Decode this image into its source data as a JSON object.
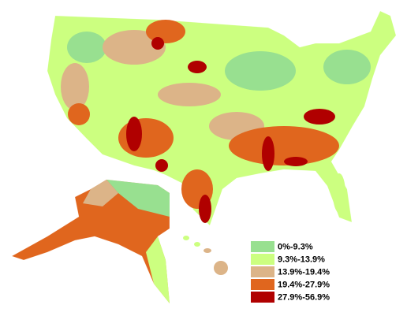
{
  "legend": {
    "items": [
      {
        "label": "0%-9.3%",
        "color": "#98e090"
      },
      {
        "label": "9.3%-13.9%",
        "color": "#ccff80"
      },
      {
        "label": "13.9%-19.4%",
        "color": "#dcb488"
      },
      {
        "label": "19.4%-27.9%",
        "color": "#e0661e"
      },
      {
        "label": "27.9%-56.9%",
        "color": "#b00000"
      }
    ]
  }
}
